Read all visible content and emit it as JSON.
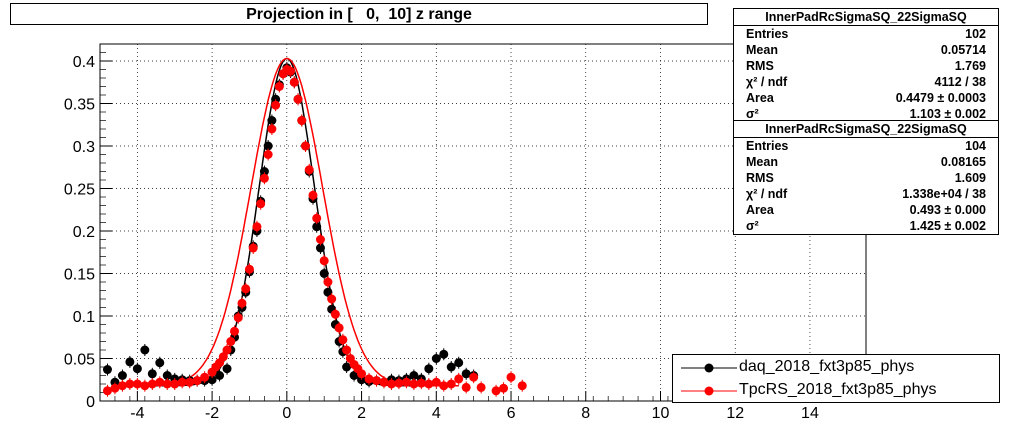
{
  "chart_data": {
    "type": "scatter",
    "title": "Projection in [   0,  10] z range",
    "xlim": [
      -5,
      15.5
    ],
    "ylim": [
      0,
      0.42
    ],
    "x_ticks": [
      -4,
      -2,
      0,
      2,
      4,
      6,
      8,
      10,
      12,
      14
    ],
    "y_ticks": [
      "0",
      "0.05",
      "0.1",
      "0.15",
      "0.2",
      "0.25",
      "0.3",
      "0.35",
      "0.4"
    ],
    "y_tick_values": [
      0,
      0.05,
      0.1,
      0.15,
      0.2,
      0.25,
      0.3,
      0.35,
      0.4
    ],
    "grid": true,
    "legend_position": "bottom-right",
    "series": [
      {
        "name": "daq_2018_fxt3p85_phys",
        "color": "#000000",
        "fit_sigma": 1.103,
        "points": [
          [
            -4.8,
            0.037
          ],
          [
            -4.6,
            0.022
          ],
          [
            -4.4,
            0.03
          ],
          [
            -4.2,
            0.046
          ],
          [
            -4.0,
            0.038
          ],
          [
            -3.8,
            0.06
          ],
          [
            -3.6,
            0.032
          ],
          [
            -3.4,
            0.045
          ],
          [
            -3.2,
            0.03
          ],
          [
            -3.0,
            0.026
          ],
          [
            -2.8,
            0.025
          ],
          [
            -2.6,
            0.024
          ],
          [
            -2.4,
            0.024
          ],
          [
            -2.2,
            0.024
          ],
          [
            -2.0,
            0.025
          ],
          [
            -1.8,
            0.03
          ],
          [
            -1.6,
            0.038
          ],
          [
            -1.5,
            0.06
          ],
          [
            -1.4,
            0.075
          ],
          [
            -1.3,
            0.1
          ],
          [
            -1.2,
            0.11
          ],
          [
            -1.1,
            0.128
          ],
          [
            -1.0,
            0.152
          ],
          [
            -0.9,
            0.182
          ],
          [
            -0.8,
            0.2
          ],
          [
            -0.7,
            0.235
          ],
          [
            -0.6,
            0.27
          ],
          [
            -0.5,
            0.3
          ],
          [
            -0.4,
            0.33
          ],
          [
            -0.3,
            0.355
          ],
          [
            -0.2,
            0.372
          ],
          [
            -0.1,
            0.385
          ],
          [
            0.0,
            0.392
          ],
          [
            0.1,
            0.387
          ],
          [
            0.2,
            0.375
          ],
          [
            0.3,
            0.355
          ],
          [
            0.4,
            0.33
          ],
          [
            0.5,
            0.3
          ],
          [
            0.6,
            0.27
          ],
          [
            0.7,
            0.238
          ],
          [
            0.8,
            0.205
          ],
          [
            0.9,
            0.18
          ],
          [
            1.0,
            0.15
          ],
          [
            1.1,
            0.128
          ],
          [
            1.2,
            0.108
          ],
          [
            1.3,
            0.09
          ],
          [
            1.4,
            0.07
          ],
          [
            1.5,
            0.058
          ],
          [
            1.6,
            0.04
          ],
          [
            1.8,
            0.03
          ],
          [
            2.0,
            0.025
          ],
          [
            2.2,
            0.023
          ],
          [
            2.4,
            0.024
          ],
          [
            2.6,
            0.022
          ],
          [
            2.8,
            0.025
          ],
          [
            3.0,
            0.024
          ],
          [
            3.2,
            0.026
          ],
          [
            3.4,
            0.03
          ],
          [
            3.6,
            0.026
          ],
          [
            3.8,
            0.038
          ],
          [
            4.0,
            0.05
          ],
          [
            4.2,
            0.055
          ],
          [
            4.4,
            0.04
          ],
          [
            4.6,
            0.045
          ],
          [
            4.8,
            0.032
          ],
          [
            5.0,
            0.03
          ]
        ]
      },
      {
        "name": "TpcRS_2018_fxt3p85_phys",
        "color": "#ff0000",
        "fit_sigma": 1.425,
        "points": [
          [
            -4.8,
            0.012
          ],
          [
            -4.6,
            0.015
          ],
          [
            -4.4,
            0.018
          ],
          [
            -4.2,
            0.02
          ],
          [
            -4.0,
            0.02
          ],
          [
            -3.8,
            0.018
          ],
          [
            -3.6,
            0.02
          ],
          [
            -3.4,
            0.022
          ],
          [
            -3.2,
            0.02
          ],
          [
            -3.0,
            0.02
          ],
          [
            -2.8,
            0.022
          ],
          [
            -2.6,
            0.022
          ],
          [
            -2.4,
            0.024
          ],
          [
            -2.2,
            0.028
          ],
          [
            -2.0,
            0.034
          ],
          [
            -1.9,
            0.04
          ],
          [
            -1.8,
            0.045
          ],
          [
            -1.7,
            0.052
          ],
          [
            -1.6,
            0.06
          ],
          [
            -1.5,
            0.07
          ],
          [
            -1.4,
            0.082
          ],
          [
            -1.3,
            0.098
          ],
          [
            -1.2,
            0.115
          ],
          [
            -1.1,
            0.132
          ],
          [
            -1.0,
            0.155
          ],
          [
            -0.9,
            0.18
          ],
          [
            -0.8,
            0.205
          ],
          [
            -0.7,
            0.232
          ],
          [
            -0.6,
            0.262
          ],
          [
            -0.5,
            0.29
          ],
          [
            -0.4,
            0.32
          ],
          [
            -0.3,
            0.348
          ],
          [
            -0.2,
            0.37
          ],
          [
            -0.1,
            0.385
          ],
          [
            0.0,
            0.39
          ],
          [
            0.1,
            0.388
          ],
          [
            0.2,
            0.375
          ],
          [
            0.3,
            0.355
          ],
          [
            0.4,
            0.33
          ],
          [
            0.5,
            0.3
          ],
          [
            0.6,
            0.272
          ],
          [
            0.7,
            0.242
          ],
          [
            0.8,
            0.215
          ],
          [
            0.9,
            0.19
          ],
          [
            1.0,
            0.165
          ],
          [
            1.1,
            0.14
          ],
          [
            1.2,
            0.12
          ],
          [
            1.3,
            0.102
          ],
          [
            1.4,
            0.086
          ],
          [
            1.5,
            0.072
          ],
          [
            1.6,
            0.06
          ],
          [
            1.7,
            0.05
          ],
          [
            1.8,
            0.043
          ],
          [
            1.9,
            0.038
          ],
          [
            2.0,
            0.032
          ],
          [
            2.2,
            0.026
          ],
          [
            2.4,
            0.024
          ],
          [
            2.6,
            0.022
          ],
          [
            2.8,
            0.02
          ],
          [
            3.0,
            0.021
          ],
          [
            3.2,
            0.022
          ],
          [
            3.4,
            0.02
          ],
          [
            3.6,
            0.021
          ],
          [
            3.8,
            0.02
          ],
          [
            4.0,
            0.022
          ],
          [
            4.2,
            0.018
          ],
          [
            4.4,
            0.02
          ],
          [
            4.6,
            0.026
          ],
          [
            4.8,
            0.016
          ],
          [
            5.0,
            0.028
          ],
          [
            5.2,
            0.016
          ],
          [
            5.6,
            0.012
          ],
          [
            5.8,
            0.015
          ],
          [
            6.0,
            0.028
          ],
          [
            6.3,
            0.018
          ]
        ]
      }
    ]
  },
  "stats_boxes": [
    {
      "name": "InnerPadRcSigmaSQ_22SigmaSQ",
      "rows": [
        {
          "label": "Entries",
          "value": "102"
        },
        {
          "label": "Mean",
          "value": "0.05714"
        },
        {
          "label": "RMS",
          "value": "1.769"
        },
        {
          "label": "χ² / ndf",
          "value": "4112 / 38"
        },
        {
          "label": "Area",
          "value": "0.4479 ± 0.0003"
        },
        {
          "label": "σ²",
          "value": "1.103 ± 0.002"
        }
      ]
    },
    {
      "name": "InnerPadRcSigmaSQ_22SigmaSQ",
      "rows": [
        {
          "label": "Entries",
          "value": "104"
        },
        {
          "label": "Mean",
          "value": "0.08165"
        },
        {
          "label": "RMS",
          "value": "1.609"
        },
        {
          "label": "χ² / ndf",
          "value": "1.338e+04 / 38"
        },
        {
          "label": "Area",
          "value": "0.493 ± 0.000"
        },
        {
          "label": "σ²",
          "value": "1.425 ± 0.002"
        }
      ]
    }
  ]
}
